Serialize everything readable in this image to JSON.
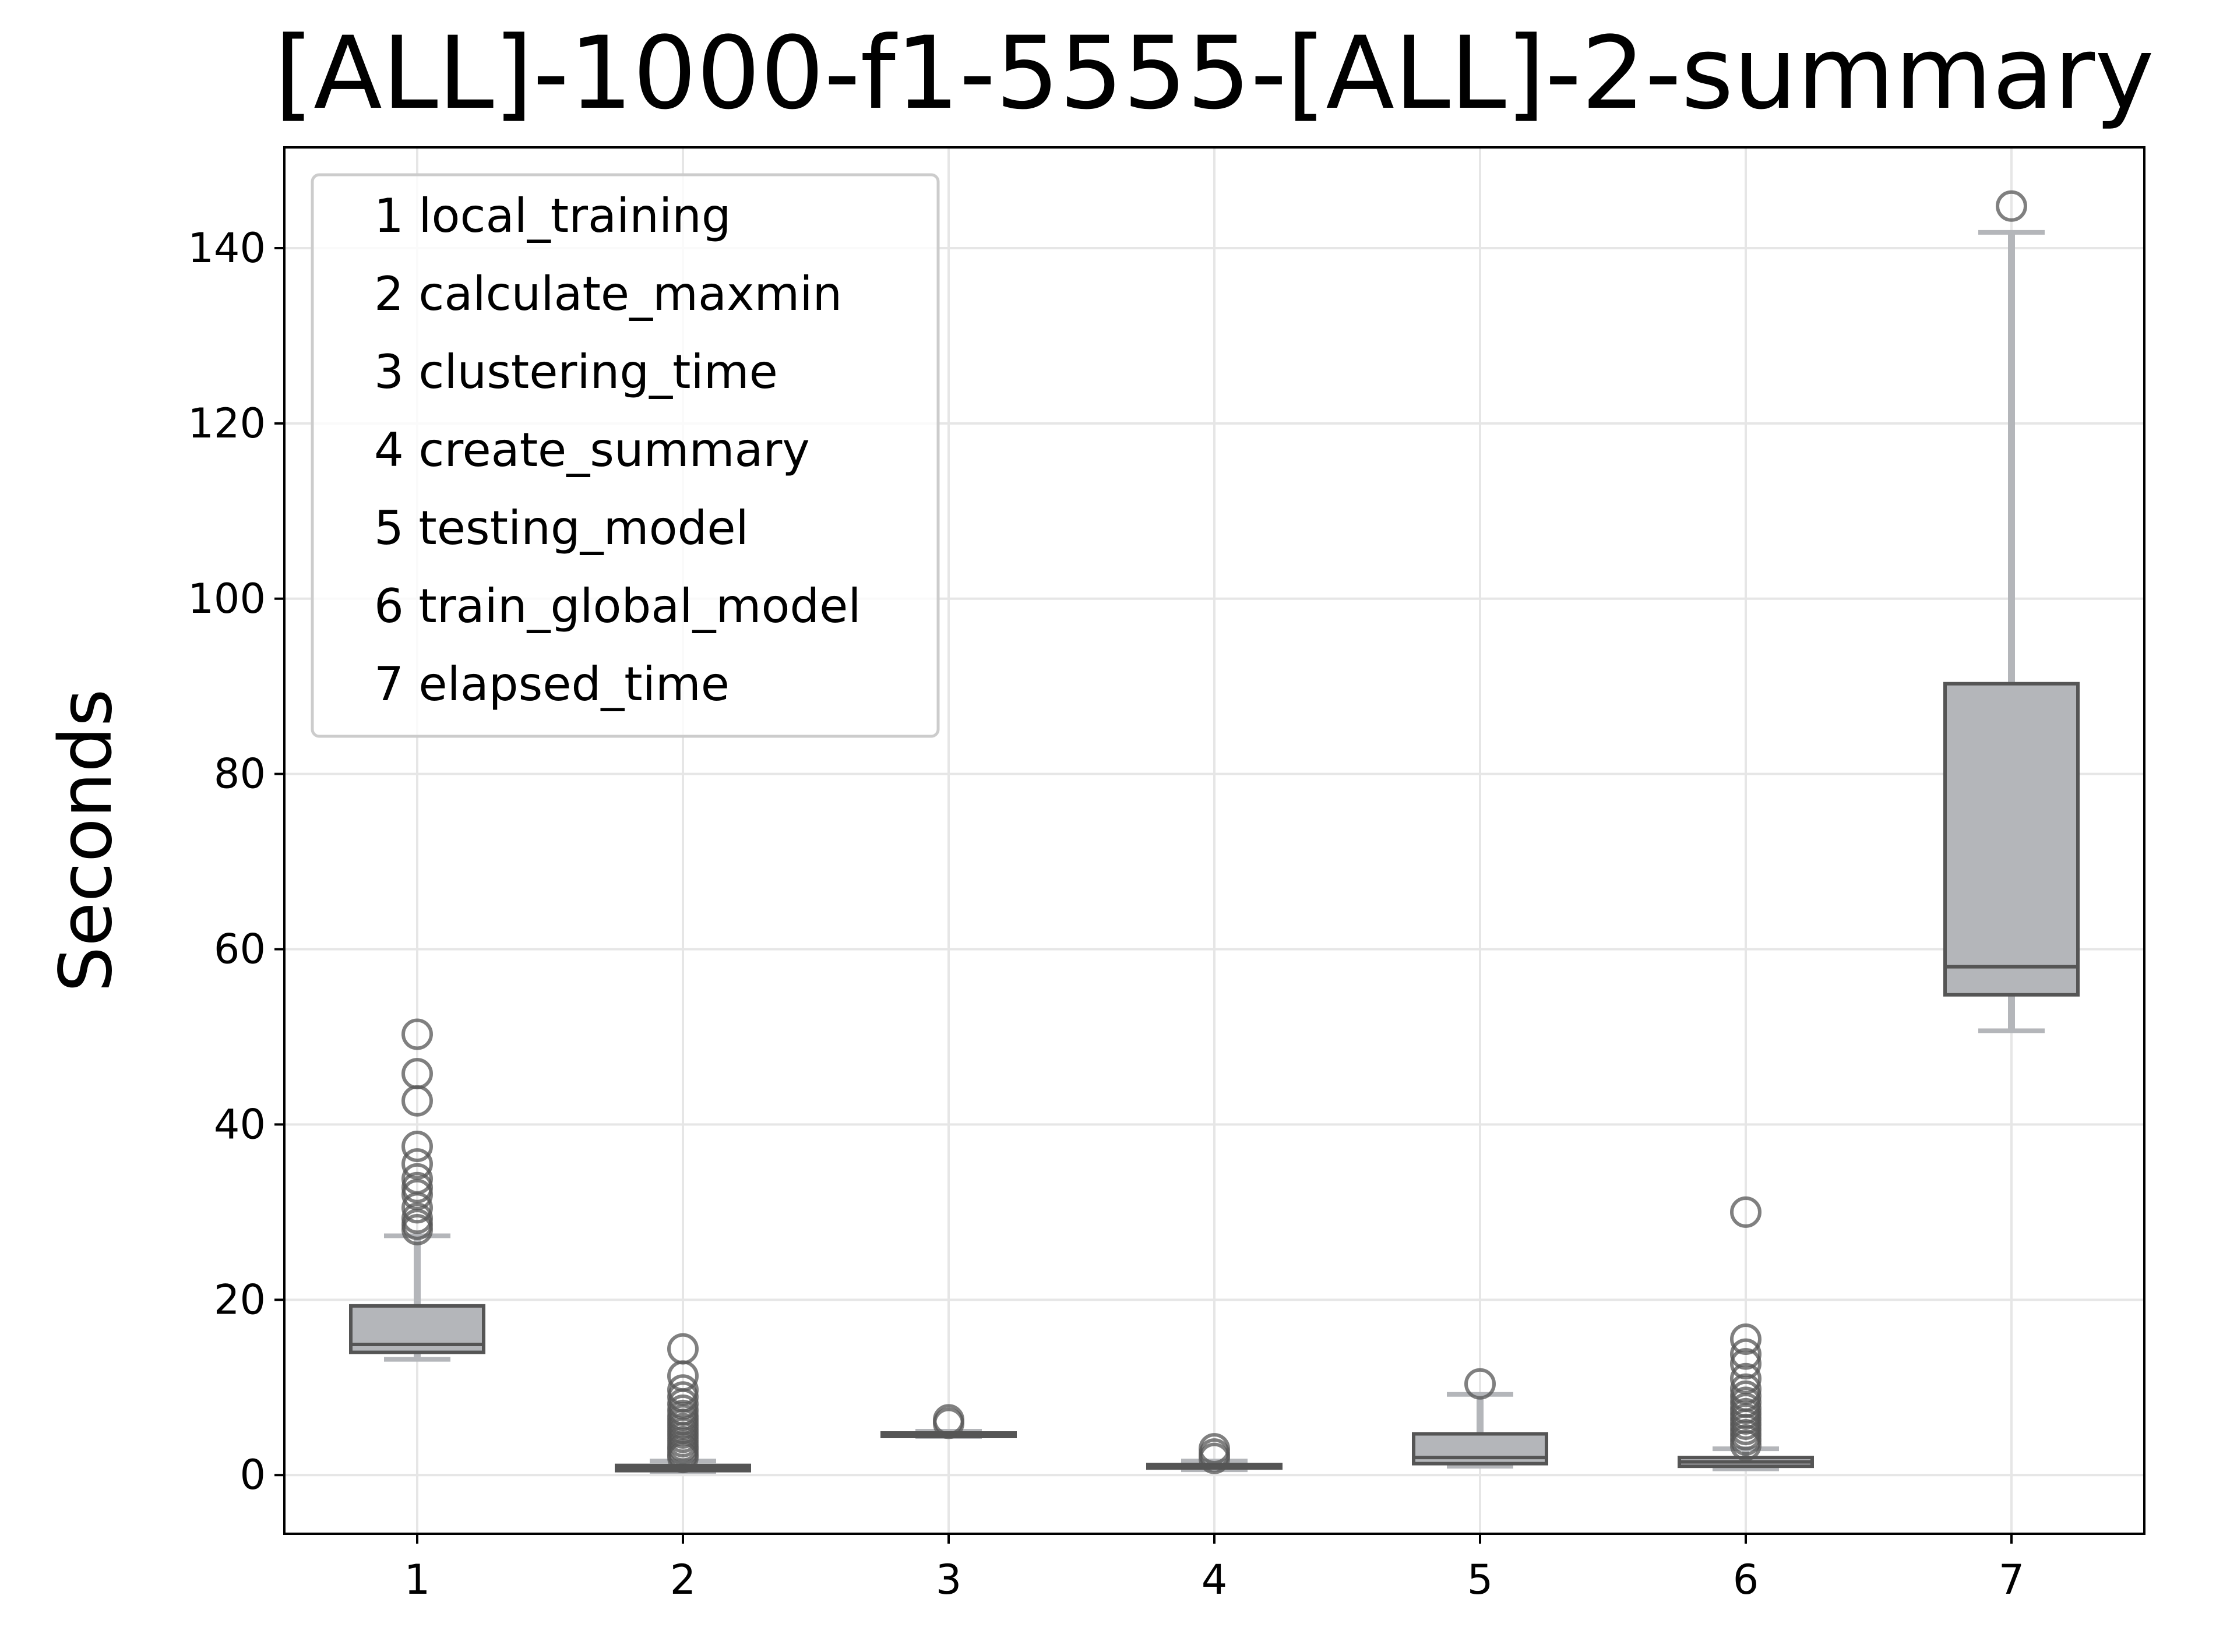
{
  "chart_data": {
    "type": "box",
    "title": "[ALL]-1000-f1-5555-[ALL]-2-summary",
    "xlabel": "",
    "ylabel": "Seconds",
    "ylim": [
      -6.7,
      151.5
    ],
    "xlim": [
      0.5,
      7.5
    ],
    "yticks": [
      0,
      20,
      40,
      60,
      80,
      100,
      120,
      140
    ],
    "grid": true,
    "legend_position": "top-left",
    "colors": {
      "box_fill": "#b4b6ba",
      "box_edge": "#555555",
      "whisker": "#b4b6ba",
      "outlier_edge": "#555555",
      "grid": "#e6e6e6"
    },
    "categories": [
      "1",
      "2",
      "3",
      "4",
      "5",
      "6",
      "7"
    ],
    "legend": [
      "1 local_training",
      "2 calculate_maxmin",
      "3 clustering_time",
      "4 create_summary",
      "5 testing_model",
      "6 train_global_model",
      "7 elapsed_time"
    ],
    "boxes": [
      {
        "category": "1",
        "whisker_low": 13.2,
        "q1": 14.0,
        "median": 14.9,
        "q3": 19.3,
        "whisker_high": 27.3,
        "outliers": [
          28.0,
          28.6,
          29.3,
          30.5,
          32.0,
          32.8,
          33.8,
          35.5,
          37.5,
          42.7,
          45.8,
          50.3
        ]
      },
      {
        "category": "2",
        "whisker_low": 0.4,
        "q1": 0.5,
        "median": 0.8,
        "q3": 1.1,
        "whisker_high": 1.6,
        "outliers": [
          2.0,
          2.4,
          2.9,
          3.3,
          3.8,
          4.3,
          4.8,
          5.3,
          5.8,
          6.3,
          6.8,
          7.4,
          8.1,
          8.9,
          9.7,
          11.3,
          14.4
        ]
      },
      {
        "category": "3",
        "whisker_low": 4.4,
        "q1": 4.5,
        "median": 4.7,
        "q3": 4.8,
        "whisker_high": 5.0,
        "outliers": [
          5.9,
          6.3
        ]
      },
      {
        "category": "4",
        "whisker_low": 0.6,
        "q1": 0.8,
        "median": 1.0,
        "q3": 1.2,
        "whisker_high": 1.6,
        "outliers": [
          1.9,
          2.4,
          3.0
        ]
      },
      {
        "category": "5",
        "whisker_low": 1.0,
        "q1": 1.3,
        "median": 2.0,
        "q3": 4.7,
        "whisker_high": 9.2,
        "outliers": [
          10.4
        ]
      },
      {
        "category": "6",
        "whisker_low": 0.7,
        "q1": 1.0,
        "median": 1.5,
        "q3": 2.0,
        "whisker_high": 3.0,
        "outliers": [
          3.4,
          4.0,
          4.6,
          5.2,
          5.8,
          6.4,
          7.0,
          7.6,
          8.3,
          9.0,
          9.8,
          11.0,
          12.7,
          13.8,
          15.5,
          30.0
        ]
      },
      {
        "category": "7",
        "whisker_low": 50.7,
        "q1": 54.8,
        "median": 58.0,
        "q3": 90.3,
        "whisker_high": 141.8,
        "outliers": [
          144.8
        ]
      }
    ]
  }
}
